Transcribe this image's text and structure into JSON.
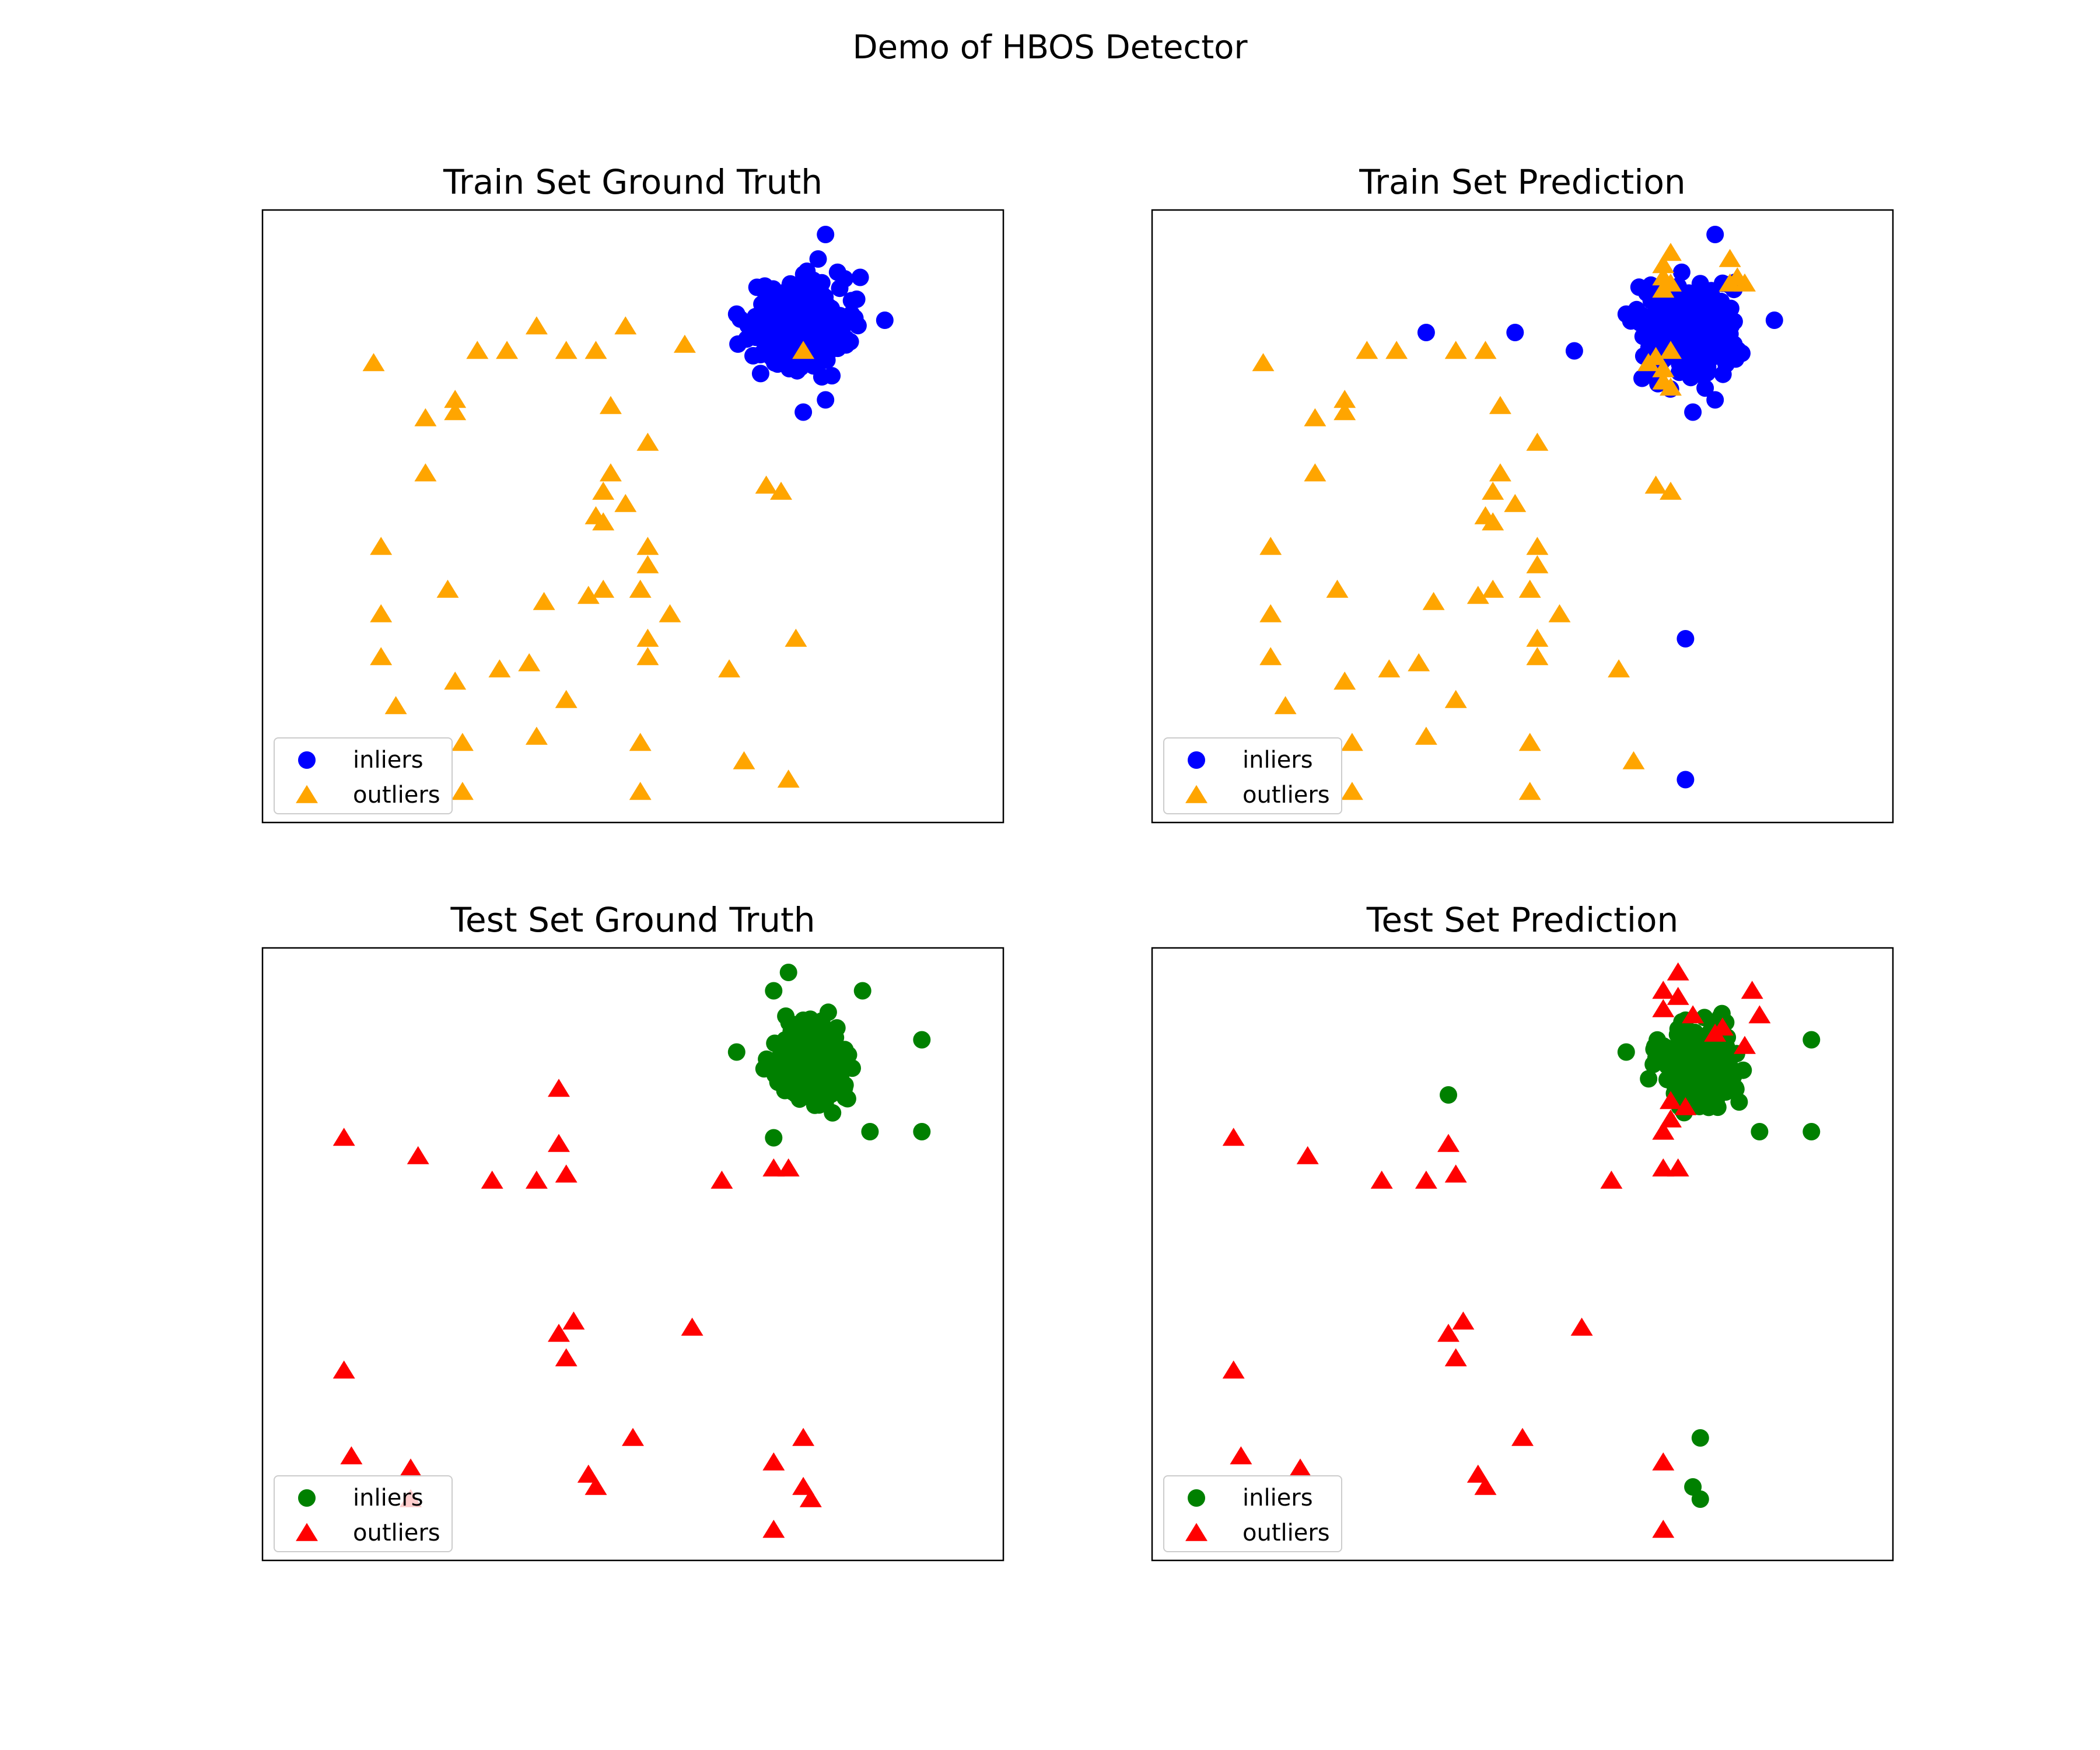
{
  "figure": {
    "title": "Demo of HBOS Detector"
  },
  "colors": {
    "train_inlier": "#0000ff",
    "train_outlier": "#ffa500",
    "test_inlier": "#008000",
    "test_outlier": "#ff0000"
  },
  "chart_data": [
    {
      "type": "scatter",
      "title": "Train Set Ground Truth",
      "xlim": [
        0,
        10
      ],
      "ylim": [
        0,
        10
      ],
      "grid": false,
      "ticks_visible": false,
      "legend": {
        "placement": "lower-left",
        "entries": [
          "inliers",
          "outliers"
        ]
      },
      "series": [
        {
          "name": "inliers",
          "marker": "circle",
          "color": "#0000ff",
          "cluster": {
            "center": [
              7.25,
              8.1
            ],
            "spread": [
              0.55,
              0.6
            ],
            "count": 400
          },
          "points": [
            [
              7.6,
              9.6
            ],
            [
              7.3,
              6.7
            ],
            [
              7.6,
              6.9
            ],
            [
              6.4,
              8.3
            ],
            [
              8.4,
              8.2
            ],
            [
              7.5,
              9.2
            ]
          ]
        },
        {
          "name": "outliers",
          "marker": "triangle",
          "color": "#ffa500",
          "points": [
            [
              1.5,
              7.5
            ],
            [
              2.9,
              7.7
            ],
            [
              3.3,
              7.7
            ],
            [
              3.7,
              8.1
            ],
            [
              4.1,
              7.7
            ],
            [
              4.5,
              7.7
            ],
            [
              4.9,
              8.1
            ],
            [
              5.7,
              7.8
            ],
            [
              2.6,
              6.9
            ],
            [
              2.6,
              6.7
            ],
            [
              2.2,
              6.6
            ],
            [
              4.7,
              6.8
            ],
            [
              5.2,
              6.2
            ],
            [
              2.2,
              5.7
            ],
            [
              4.7,
              5.7
            ],
            [
              4.6,
              5.4
            ],
            [
              4.9,
              5.2
            ],
            [
              4.5,
              5.0
            ],
            [
              4.6,
              4.9
            ],
            [
              6.8,
              5.5
            ],
            [
              7.0,
              5.4
            ],
            [
              1.6,
              4.5
            ],
            [
              5.2,
              4.5
            ],
            [
              5.2,
              4.2
            ],
            [
              2.5,
              3.8
            ],
            [
              3.8,
              3.6
            ],
            [
              4.4,
              3.7
            ],
            [
              4.6,
              3.8
            ],
            [
              5.1,
              3.8
            ],
            [
              5.5,
              3.4
            ],
            [
              1.6,
              3.4
            ],
            [
              5.2,
              3.0
            ],
            [
              5.2,
              2.7
            ],
            [
              7.2,
              3.0
            ],
            [
              1.6,
              2.7
            ],
            [
              2.6,
              2.3
            ],
            [
              3.2,
              2.5
            ],
            [
              3.6,
              2.6
            ],
            [
              4.1,
              2.0
            ],
            [
              6.3,
              2.5
            ],
            [
              1.8,
              1.9
            ],
            [
              2.7,
              1.3
            ],
            [
              3.7,
              1.4
            ],
            [
              5.1,
              1.3
            ],
            [
              6.5,
              1.0
            ],
            [
              7.1,
              0.7
            ],
            [
              2.7,
              0.5
            ],
            [
              5.1,
              0.5
            ],
            [
              7.3,
              7.7
            ]
          ]
        }
      ]
    },
    {
      "type": "scatter",
      "title": "Train Set Prediction",
      "xlim": [
        0,
        10
      ],
      "ylim": [
        0,
        10
      ],
      "grid": false,
      "ticks_visible": false,
      "legend": {
        "placement": "lower-left",
        "entries": [
          "inliers",
          "outliers"
        ]
      },
      "series": [
        {
          "name": "inliers",
          "marker": "circle",
          "color": "#0000ff",
          "cluster": {
            "center": [
              7.25,
              8.1
            ],
            "spread": [
              0.55,
              0.6
            ],
            "count": 400
          },
          "points": [
            [
              7.6,
              9.6
            ],
            [
              7.3,
              6.7
            ],
            [
              7.6,
              6.9
            ],
            [
              6.4,
              8.3
            ],
            [
              8.4,
              8.2
            ],
            [
              3.7,
              8.0
            ],
            [
              4.9,
              8.0
            ],
            [
              5.7,
              7.7
            ],
            [
              7.2,
              3.0
            ],
            [
              7.2,
              0.7
            ]
          ]
        },
        {
          "name": "outliers",
          "marker": "triangle",
          "color": "#ffa500",
          "points": [
            [
              6.9,
              9.1
            ],
            [
              7.0,
              9.3
            ],
            [
              6.9,
              8.9
            ],
            [
              6.9,
              8.7
            ],
            [
              7.0,
              8.8
            ],
            [
              7.8,
              9.2
            ],
            [
              7.9,
              8.9
            ],
            [
              8.0,
              8.8
            ],
            [
              7.8,
              8.8
            ],
            [
              6.8,
              7.6
            ],
            [
              6.9,
              7.4
            ],
            [
              6.9,
              7.2
            ],
            [
              7.0,
              7.1
            ],
            [
              6.7,
              7.5
            ],
            [
              7.0,
              7.7
            ],
            [
              1.5,
              7.5
            ],
            [
              2.9,
              7.7
            ],
            [
              3.3,
              7.7
            ],
            [
              4.1,
              7.7
            ],
            [
              4.5,
              7.7
            ],
            [
              2.6,
              6.9
            ],
            [
              2.6,
              6.7
            ],
            [
              2.2,
              6.6
            ],
            [
              4.7,
              6.8
            ],
            [
              5.2,
              6.2
            ],
            [
              2.2,
              5.7
            ],
            [
              4.7,
              5.7
            ],
            [
              4.6,
              5.4
            ],
            [
              4.9,
              5.2
            ],
            [
              4.5,
              5.0
            ],
            [
              4.6,
              4.9
            ],
            [
              6.8,
              5.5
            ],
            [
              7.0,
              5.4
            ],
            [
              1.6,
              4.5
            ],
            [
              5.2,
              4.5
            ],
            [
              5.2,
              4.2
            ],
            [
              2.5,
              3.8
            ],
            [
              3.8,
              3.6
            ],
            [
              4.4,
              3.7
            ],
            [
              4.6,
              3.8
            ],
            [
              5.1,
              3.8
            ],
            [
              5.5,
              3.4
            ],
            [
              1.6,
              3.4
            ],
            [
              5.2,
              3.0
            ],
            [
              5.2,
              2.7
            ],
            [
              1.6,
              2.7
            ],
            [
              2.6,
              2.3
            ],
            [
              3.2,
              2.5
            ],
            [
              3.6,
              2.6
            ],
            [
              4.1,
              2.0
            ],
            [
              6.3,
              2.5
            ],
            [
              1.8,
              1.9
            ],
            [
              2.7,
              1.3
            ],
            [
              3.7,
              1.4
            ],
            [
              5.1,
              1.3
            ],
            [
              6.5,
              1.0
            ],
            [
              2.7,
              0.5
            ],
            [
              5.1,
              0.5
            ]
          ]
        }
      ]
    },
    {
      "type": "scatter",
      "title": "Test Set Ground Truth",
      "xlim": [
        0,
        10
      ],
      "ylim": [
        0,
        10
      ],
      "grid": false,
      "ticks_visible": false,
      "legend": {
        "placement": "lower-left",
        "entries": [
          "inliers",
          "outliers"
        ]
      },
      "series": [
        {
          "name": "inliers",
          "marker": "circle",
          "color": "#008000",
          "cluster": {
            "center": [
              7.4,
              8.1
            ],
            "spread": [
              0.45,
              0.55
            ],
            "count": 220
          },
          "points": [
            [
              7.1,
              9.6
            ],
            [
              6.9,
              9.3
            ],
            [
              8.1,
              9.3
            ],
            [
              6.4,
              8.3
            ],
            [
              8.9,
              8.5
            ],
            [
              8.9,
              7.0
            ],
            [
              6.9,
              6.9
            ],
            [
              8.2,
              7.0
            ]
          ]
        },
        {
          "name": "outliers",
          "marker": "triangle",
          "color": "#ff0000",
          "points": [
            [
              1.1,
              6.9
            ],
            [
              4.0,
              7.7
            ],
            [
              2.1,
              6.6
            ],
            [
              4.0,
              6.8
            ],
            [
              3.1,
              6.2
            ],
            [
              3.7,
              6.2
            ],
            [
              4.1,
              6.3
            ],
            [
              6.2,
              6.2
            ],
            [
              6.9,
              6.4
            ],
            [
              7.1,
              6.4
            ],
            [
              4.0,
              3.7
            ],
            [
              4.2,
              3.9
            ],
            [
              5.8,
              3.8
            ],
            [
              4.1,
              3.3
            ],
            [
              1.1,
              3.1
            ],
            [
              5.0,
              2.0
            ],
            [
              7.3,
              2.0
            ],
            [
              1.2,
              1.7
            ],
            [
              6.9,
              1.6
            ],
            [
              2.0,
              1.5
            ],
            [
              4.4,
              1.4
            ],
            [
              4.5,
              1.2
            ],
            [
              7.3,
              1.2
            ],
            [
              7.4,
              1.0
            ],
            [
              6.9,
              0.5
            ],
            [
              2.0,
              1.0
            ]
          ]
        }
      ]
    },
    {
      "type": "scatter",
      "title": "Test Set Prediction",
      "xlim": [
        0,
        10
      ],
      "ylim": [
        0,
        10
      ],
      "grid": false,
      "ticks_visible": false,
      "legend": {
        "placement": "lower-left",
        "entries": [
          "inliers",
          "outliers"
        ]
      },
      "series": [
        {
          "name": "inliers",
          "marker": "circle",
          "color": "#008000",
          "cluster": {
            "center": [
              7.4,
              8.1
            ],
            "spread": [
              0.45,
              0.55
            ],
            "count": 220
          },
          "points": [
            [
              6.4,
              8.3
            ],
            [
              8.9,
              8.5
            ],
            [
              8.9,
              7.0
            ],
            [
              4.0,
              7.6
            ],
            [
              7.4,
              2.0
            ],
            [
              7.3,
              1.2
            ],
            [
              7.4,
              1.0
            ],
            [
              6.9,
              8.4
            ],
            [
              8.2,
              7.0
            ]
          ]
        },
        {
          "name": "outliers",
          "marker": "triangle",
          "color": "#ff0000",
          "points": [
            [
              7.1,
              9.6
            ],
            [
              6.9,
              9.3
            ],
            [
              7.1,
              9.2
            ],
            [
              8.1,
              9.3
            ],
            [
              6.9,
              9.0
            ],
            [
              7.3,
              8.9
            ],
            [
              8.2,
              8.9
            ],
            [
              7.6,
              8.6
            ],
            [
              8.0,
              8.4
            ],
            [
              7.0,
              7.5
            ],
            [
              7.2,
              7.4
            ],
            [
              7.0,
              7.2
            ],
            [
              6.9,
              7.0
            ],
            [
              7.7,
              8.7
            ],
            [
              1.1,
              6.9
            ],
            [
              4.0,
              6.8
            ],
            [
              2.1,
              6.6
            ],
            [
              3.1,
              6.2
            ],
            [
              3.7,
              6.2
            ],
            [
              4.1,
              6.3
            ],
            [
              6.2,
              6.2
            ],
            [
              6.9,
              6.4
            ],
            [
              7.1,
              6.4
            ],
            [
              4.0,
              3.7
            ],
            [
              4.2,
              3.9
            ],
            [
              5.8,
              3.8
            ],
            [
              4.1,
              3.3
            ],
            [
              1.1,
              3.1
            ],
            [
              5.0,
              2.0
            ],
            [
              1.2,
              1.7
            ],
            [
              6.9,
              1.6
            ],
            [
              2.0,
              1.5
            ],
            [
              4.4,
              1.4
            ],
            [
              4.5,
              1.2
            ],
            [
              6.9,
              0.5
            ]
          ]
        }
      ]
    }
  ]
}
